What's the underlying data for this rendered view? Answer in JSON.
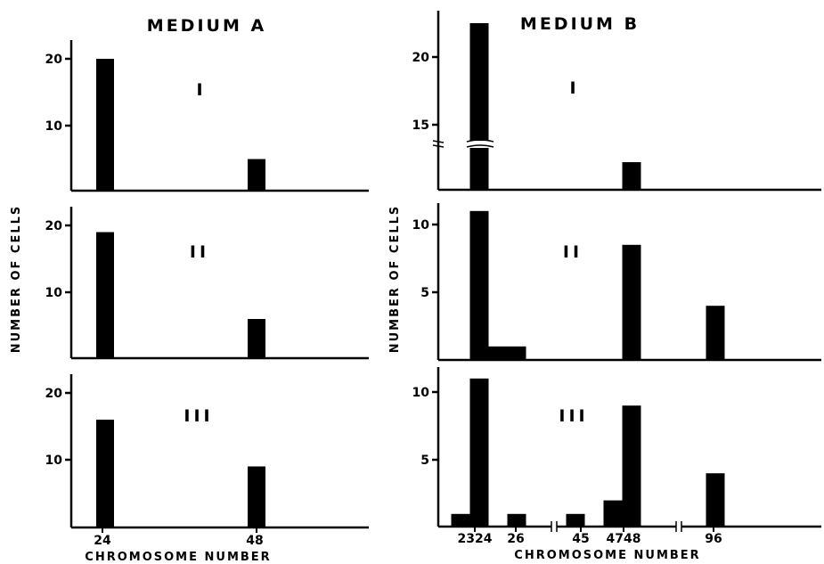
{
  "chart_data": [
    {
      "type": "bar",
      "group": "A",
      "title": "MEDIUM A",
      "panel": "I",
      "ylabel": "NUMBER OF CELLS",
      "xlabel": "CHROMOSOME NUMBER",
      "ylim": [
        0,
        23
      ],
      "yticks": [
        10,
        20
      ],
      "xlim": [
        16,
        60
      ],
      "xticks": [
        24,
        48
      ],
      "xtick_labels": [
        "24",
        "48"
      ],
      "bars": [
        {
          "x": 24,
          "value": 20
        },
        {
          "x": 48,
          "value": 5
        }
      ]
    },
    {
      "type": "bar",
      "group": "A",
      "panel": "II",
      "ylim": [
        0,
        23
      ],
      "yticks": [
        10,
        20
      ],
      "xlim": [
        16,
        60
      ],
      "bars": [
        {
          "x": 24,
          "value": 19
        },
        {
          "x": 48,
          "value": 6
        }
      ]
    },
    {
      "type": "bar",
      "group": "A",
      "panel": "III",
      "ylim": [
        0,
        23
      ],
      "yticks": [
        10,
        20
      ],
      "xlim": [
        16,
        60
      ],
      "bars": [
        {
          "x": 24,
          "value": 16
        },
        {
          "x": 48,
          "value": 9
        }
      ]
    },
    {
      "type": "bar",
      "group": "B",
      "title": "MEDIUM B",
      "panel": "I",
      "ylabel": "NUMBER OF CELLS",
      "xlabel": "CHROMOSOME NUMBER",
      "ylim": [
        11,
        23
      ],
      "yticks": [
        15,
        20
      ],
      "axis_break": 13.5,
      "xtick_labels": [
        "2324",
        "26",
        "45",
        "4748",
        "96"
      ],
      "bars": [
        {
          "x": 24,
          "value": 22.5
        },
        {
          "x": 48,
          "value": 12
        }
      ]
    },
    {
      "type": "bar",
      "group": "B",
      "panel": "II",
      "ylim": [
        0,
        11.5
      ],
      "yticks": [
        5,
        10
      ],
      "bars": [
        {
          "x": 24,
          "value": 11
        },
        {
          "x": 25,
          "value": 1
        },
        {
          "x": 26,
          "value": 1
        },
        {
          "x": 48,
          "value": 8.5
        },
        {
          "x": 96,
          "value": 4
        }
      ]
    },
    {
      "type": "bar",
      "group": "B",
      "panel": "III",
      "ylim": [
        0,
        11.5
      ],
      "yticks": [
        5,
        10
      ],
      "bars": [
        {
          "x": 23,
          "value": 1
        },
        {
          "x": 24,
          "value": 11
        },
        {
          "x": 26,
          "value": 1
        },
        {
          "x": 45,
          "value": 1
        },
        {
          "x": 47,
          "value": 2
        },
        {
          "x": 48,
          "value": 9
        },
        {
          "x": 96,
          "value": 4
        }
      ]
    }
  ]
}
